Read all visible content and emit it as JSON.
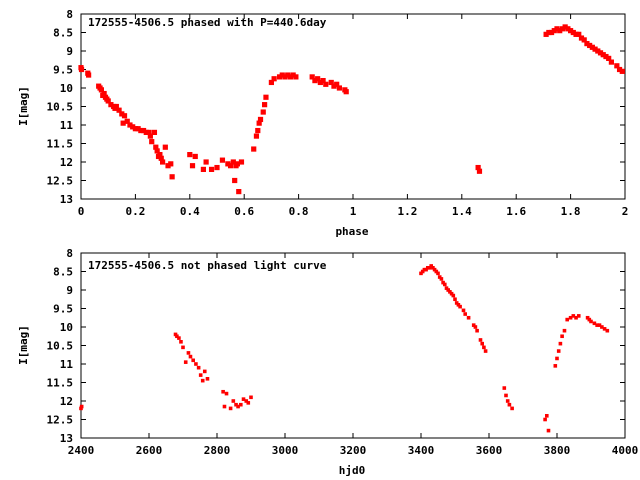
{
  "chart_data": [
    {
      "type": "scatter",
      "title": "172555-4506.5 phased with P=440.6day",
      "xlabel": "phase",
      "ylabel": "I[mag]",
      "xlim": [
        0,
        2
      ],
      "ylim": [
        13,
        8
      ],
      "y_inverted": true,
      "grid": false,
      "marker_color": "#ff0000",
      "x_ticks": [
        "0",
        "0.2",
        "0.4",
        "0.6",
        "0.8",
        "1",
        "1.2",
        "1.4",
        "1.6",
        "1.8",
        "2"
      ],
      "y_ticks": [
        "8",
        "8.5",
        "9",
        "9.5",
        "10",
        "10.5",
        "11",
        "11.5",
        "12",
        "12.5",
        "13"
      ],
      "series": [
        {
          "x": [
            0.0,
            0.002,
            0.025,
            0.028,
            0.065,
            0.07,
            0.075,
            0.08,
            0.085,
            0.09,
            0.095,
            0.1,
            0.11,
            0.12,
            0.125,
            0.13,
            0.14,
            0.15,
            0.155,
            0.16,
            0.17,
            0.18,
            0.19,
            0.2,
            0.21,
            0.22,
            0.23,
            0.24,
            0.25,
            0.255,
            0.26,
            0.27,
            0.275,
            0.28,
            0.285,
            0.29,
            0.295,
            0.3,
            0.31,
            0.32,
            0.33,
            0.335,
            0.4,
            0.41,
            0.42,
            0.45,
            0.46,
            0.48,
            0.5,
            0.52,
            0.54,
            0.55,
            0.56,
            0.565,
            0.57,
            0.575,
            0.58,
            0.59,
            0.635,
            0.645,
            0.65,
            0.655,
            0.66,
            0.67,
            0.675,
            0.68,
            0.7,
            0.71,
            0.73,
            0.74,
            0.75,
            0.76,
            0.77,
            0.78,
            0.79,
            0.85,
            0.86,
            0.87,
            0.88,
            0.89,
            0.9,
            0.92,
            0.93,
            0.94,
            0.95,
            0.97,
            0.975,
            1.46,
            1.465,
            1.71,
            1.72,
            1.73,
            1.74,
            1.75,
            1.76,
            1.77,
            1.78,
            1.79,
            1.8,
            1.81,
            1.82,
            1.83,
            1.84,
            1.85,
            1.86,
            1.87,
            1.88,
            1.89,
            1.9,
            1.91,
            1.92,
            1.93,
            1.94,
            1.95,
            1.97,
            1.98,
            1.99
          ],
          "y": [
            9.45,
            9.5,
            9.6,
            9.65,
            9.95,
            10.0,
            10.05,
            10.2,
            10.15,
            10.25,
            10.3,
            10.35,
            10.45,
            10.5,
            10.55,
            10.5,
            10.6,
            10.7,
            10.95,
            10.75,
            10.9,
            11.0,
            11.05,
            11.1,
            11.1,
            11.15,
            11.15,
            11.2,
            11.2,
            11.3,
            11.45,
            11.2,
            11.6,
            11.7,
            11.85,
            11.8,
            11.9,
            12.0,
            11.6,
            12.1,
            12.05,
            12.4,
            11.8,
            12.1,
            11.85,
            12.2,
            12.0,
            12.2,
            12.15,
            11.95,
            12.05,
            12.1,
            12.0,
            12.5,
            12.1,
            12.05,
            12.8,
            12.0,
            11.65,
            11.3,
            11.15,
            10.95,
            10.85,
            10.65,
            10.45,
            10.25,
            9.85,
            9.75,
            9.7,
            9.65,
            9.7,
            9.65,
            9.7,
            9.65,
            9.7,
            9.7,
            9.8,
            9.75,
            9.85,
            9.8,
            9.9,
            9.85,
            9.95,
            9.9,
            10.0,
            10.05,
            10.1,
            12.15,
            12.25,
            8.55,
            8.5,
            8.5,
            8.45,
            8.4,
            8.45,
            8.4,
            8.35,
            8.4,
            8.45,
            8.5,
            8.55,
            8.55,
            8.65,
            8.7,
            8.8,
            8.85,
            8.9,
            8.95,
            9.0,
            9.05,
            9.1,
            9.15,
            9.2,
            9.3,
            9.4,
            9.5,
            9.55
          ]
        }
      ]
    },
    {
      "type": "scatter",
      "title": "172555-4506.5 not phased light curve",
      "xlabel": "hjd0",
      "ylabel": "I[mag]",
      "xlim": [
        2400,
        4000
      ],
      "ylim": [
        13,
        8
      ],
      "y_inverted": true,
      "grid": false,
      "marker_color": "#ff0000",
      "x_ticks": [
        "2400",
        "2600",
        "2800",
        "3000",
        "3200",
        "3400",
        "3600",
        "3800",
        "4000"
      ],
      "y_ticks": [
        "8",
        "8.5",
        "9",
        "9.5",
        "10",
        "10.5",
        "11",
        "11.5",
        "12",
        "12.5",
        "13"
      ],
      "series": [
        {
          "x": [
            2400,
            2402,
            2678,
            2682,
            2688,
            2694,
            2700,
            2708,
            2716,
            2722,
            2730,
            2738,
            2746,
            2752,
            2758,
            2764,
            2772,
            2818,
            2822,
            2828,
            2840,
            2848,
            2856,
            2862,
            2870,
            2878,
            2886,
            2892,
            2900,
            3400,
            3405,
            3410,
            3415,
            3420,
            3425,
            3430,
            3435,
            3440,
            3445,
            3450,
            3455,
            3460,
            3465,
            3470,
            3475,
            3480,
            3485,
            3490,
            3495,
            3500,
            3505,
            3510,
            3515,
            3525,
            3530,
            3540,
            3555,
            3560,
            3565,
            3575,
            3580,
            3585,
            3590,
            3645,
            3650,
            3655,
            3660,
            3668,
            3765,
            3770,
            3775,
            3795,
            3800,
            3805,
            3810,
            3815,
            3822,
            3830,
            3840,
            3848,
            3856,
            3864,
            3890,
            3895,
            3900,
            3910,
            3918,
            3925,
            3932,
            3940,
            3948
          ],
          "y": [
            12.2,
            12.15,
            10.2,
            10.25,
            10.3,
            10.4,
            10.55,
            10.95,
            10.7,
            10.8,
            10.9,
            11.0,
            11.1,
            11.3,
            11.45,
            11.2,
            11.4,
            11.75,
            12.15,
            11.8,
            12.2,
            12.0,
            12.1,
            12.15,
            12.1,
            11.95,
            12.0,
            12.05,
            11.9,
            8.55,
            8.5,
            8.45,
            8.45,
            8.4,
            8.4,
            8.35,
            8.4,
            8.45,
            8.5,
            8.55,
            8.65,
            8.7,
            8.8,
            8.85,
            8.95,
            9.0,
            9.05,
            9.1,
            9.15,
            9.25,
            9.35,
            9.4,
            9.45,
            9.55,
            9.65,
            9.75,
            9.95,
            10.0,
            10.1,
            10.35,
            10.45,
            10.55,
            10.65,
            11.65,
            11.85,
            12.0,
            12.1,
            12.2,
            12.5,
            12.4,
            12.8,
            11.05,
            10.85,
            10.65,
            10.45,
            10.25,
            10.1,
            9.8,
            9.75,
            9.7,
            9.75,
            9.7,
            9.75,
            9.8,
            9.85,
            9.9,
            9.95,
            9.95,
            10.0,
            10.05,
            10.1
          ]
        }
      ]
    }
  ]
}
